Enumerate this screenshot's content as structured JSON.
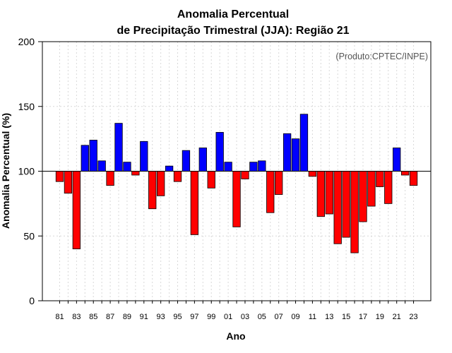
{
  "chart_data": {
    "type": "bar",
    "title_line1": "Anomalia Percentual",
    "title_line2": "de Precipitação Trimestral (JJA): Região 21",
    "xlabel": "Ano",
    "ylabel": "Anomalia Percentual (%)",
    "credit": "(Produto:CPTEC/INPE)",
    "ylim": [
      0,
      200
    ],
    "yticks": [
      "0",
      "50",
      "100",
      "150",
      "200"
    ],
    "baseline": 100,
    "colors": {
      "above": "#0000ff",
      "below": "#ff0000",
      "outline": "#000000"
    },
    "categories": [
      "81",
      "82",
      "83",
      "84",
      "85",
      "86",
      "87",
      "88",
      "89",
      "90",
      "91",
      "92",
      "93",
      "94",
      "95",
      "96",
      "97",
      "98",
      "99",
      "00",
      "01",
      "02",
      "03",
      "04",
      "05",
      "06",
      "07",
      "08",
      "09",
      "10",
      "11",
      "12",
      "13",
      "14",
      "15",
      "16",
      "17",
      "18",
      "19",
      "20",
      "21",
      "22",
      "23"
    ],
    "xtick_labels": [
      "81",
      "83",
      "85",
      "87",
      "89",
      "91",
      "93",
      "95",
      "97",
      "99",
      "01",
      "03",
      "05",
      "07",
      "09",
      "11",
      "13",
      "15",
      "17",
      "19",
      "21",
      "23"
    ],
    "values": [
      92,
      83,
      40,
      120,
      124,
      108,
      89,
      137,
      107,
      97,
      123,
      71,
      81,
      104,
      92,
      116,
      51,
      118,
      87,
      130,
      107,
      57,
      94,
      107,
      108,
      68,
      82,
      129,
      125,
      144,
      96,
      65,
      67,
      44,
      49,
      37,
      61,
      73,
      88,
      75,
      118,
      97,
      89
    ]
  }
}
